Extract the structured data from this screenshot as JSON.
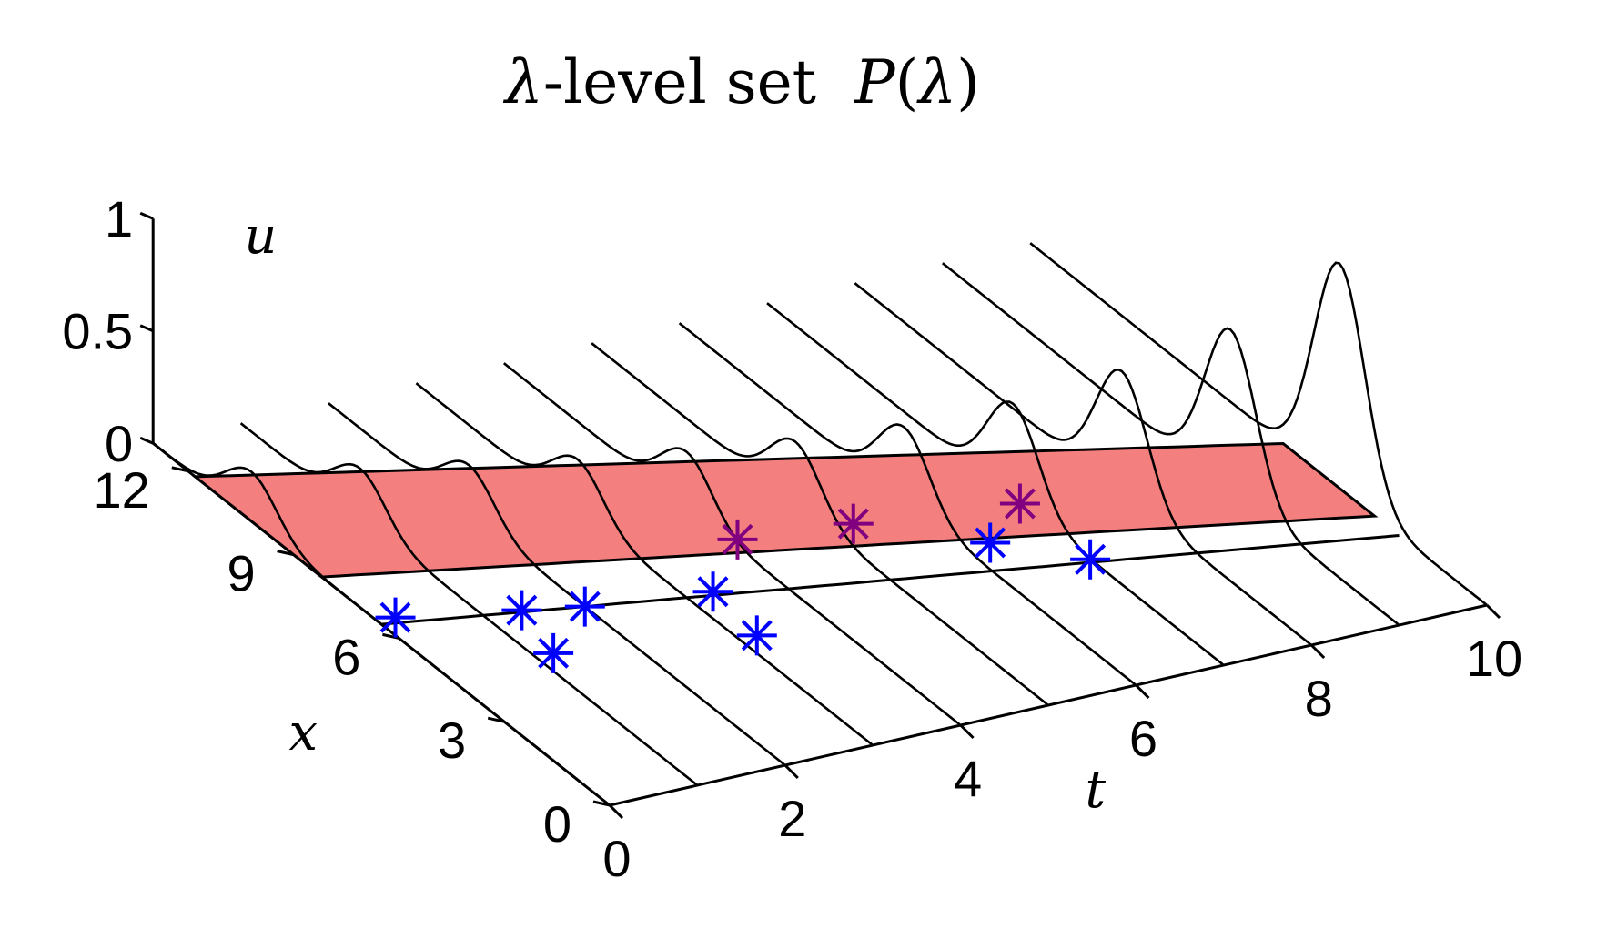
{
  "chart_data": {
    "type": "3d-line",
    "title": {
      "prefix": "λ",
      "middle": "-level set  ",
      "func": "P",
      "open": "(",
      "arg": "λ",
      "close": ")"
    },
    "axes": {
      "t": {
        "label": "t",
        "range": [
          0,
          10
        ],
        "ticks": [
          "0",
          "2",
          "4",
          "6",
          "8",
          "10"
        ]
      },
      "x": {
        "label": "x",
        "range": [
          0,
          13
        ],
        "ticks": [
          "0",
          "3",
          "6",
          "9",
          "12"
        ]
      },
      "u": {
        "label": "u",
        "range": [
          0,
          1
        ],
        "ticks": [
          "0",
          "0.5",
          "1"
        ]
      }
    },
    "curves": {
      "t_values": [
        0,
        1,
        2,
        3,
        4,
        5,
        6,
        7,
        8,
        9,
        10
      ],
      "peak_x": [
        10.2,
        9.6,
        9.0,
        8.4,
        7.8,
        7.2,
        6.6,
        6.0,
        5.4,
        4.8,
        4.2
      ],
      "peak_u": [
        0.22,
        0.22,
        0.22,
        0.23,
        0.25,
        0.28,
        0.33,
        0.42,
        0.55,
        0.72,
        1.0
      ]
    },
    "level_set": {
      "color": "#f47f7f",
      "u": 0.0,
      "t_range": [
        0,
        10
      ],
      "lower_edge_x": [
        8.2,
        7.7,
        7.2,
        6.7,
        6.2,
        5.7,
        5.2,
        4.7,
        4.2,
        3.7,
        3.2
      ],
      "upper_edge_x": [
        11.8,
        11.2,
        10.6,
        10.0,
        9.4,
        8.8,
        8.2,
        7.6,
        7.0,
        6.4,
        5.8
      ]
    },
    "reference_curve": {
      "u": 0.0,
      "x": [
        6.5,
        6.1,
        5.7,
        5.3,
        4.9,
        4.5,
        4.1,
        3.7,
        3.3,
        2.9,
        2.5
      ]
    },
    "markers": {
      "inside": {
        "color": "#800080",
        "points": [
          [
            4.1,
            6.6
          ],
          [
            5.3,
            6.3
          ],
          [
            7.0,
            5.8
          ]
        ]
      },
      "outside": {
        "color": "#0000ff",
        "points": [
          [
            0.2,
            6.6
          ],
          [
            1.4,
            6.0
          ],
          [
            2.0,
            5.7
          ],
          [
            1.2,
            4.6
          ],
          [
            3.3,
            5.3
          ],
          [
            3.2,
            3.8
          ],
          [
            6.3,
            4.9
          ],
          [
            7.0,
            3.8
          ]
        ]
      }
    }
  }
}
